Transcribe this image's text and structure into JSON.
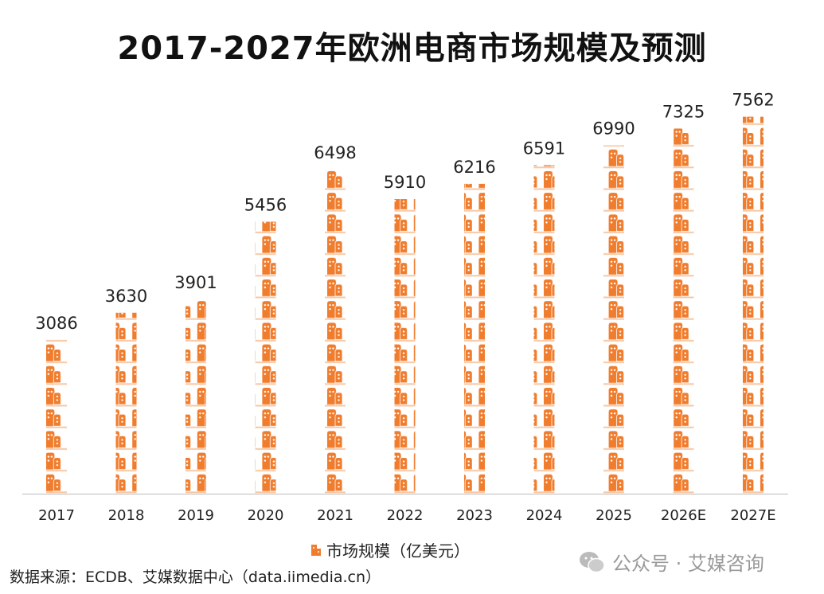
{
  "chart_data": {
    "type": "bar",
    "style": "pictogram",
    "title": "2017-2027年欧洲电商市场规模及预测",
    "categories": [
      "2017",
      "2018",
      "2019",
      "2020",
      "2021",
      "2022",
      "2023",
      "2024",
      "2025",
      "2026E",
      "2027E"
    ],
    "series": [
      {
        "name": "市场规模（亿美元）",
        "values": [
          3086,
          3630,
          3901,
          5456,
          6498,
          5910,
          6216,
          6591,
          6990,
          7325,
          7562
        ],
        "color": "#F07D2E"
      }
    ],
    "data_labels": true,
    "grid": false,
    "legend": "bottom-center",
    "icon": "building-icon"
  },
  "source": "数据来源：ECDB、艾媒数据中心（data.iimedia.cn）",
  "watermark": "公众号 · 艾媒咨询"
}
